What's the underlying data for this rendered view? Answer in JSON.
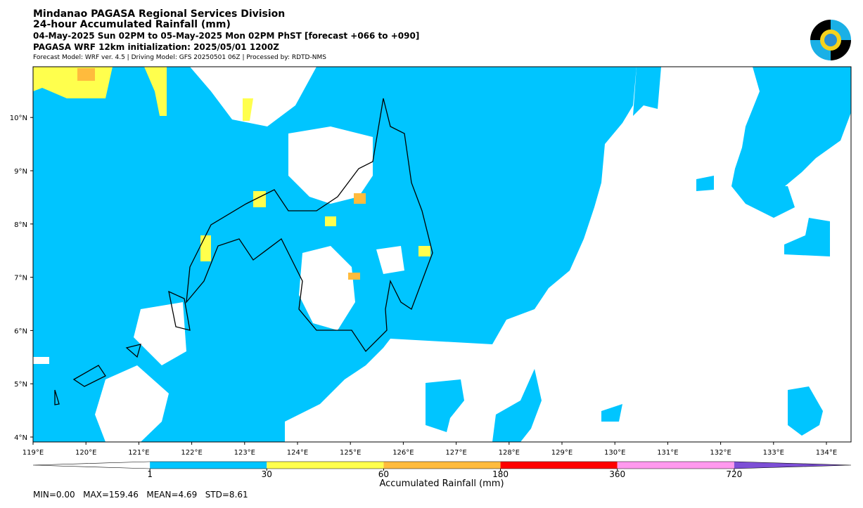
{
  "header": {
    "lines": [
      "Mindanao PAGASA Regional Services Division",
      "24-hour Accumulated Rainfall (mm)",
      "04-May-2025 Sun 02PM to 05-May-2025 Mon 02PM PhST [forecast +066 to +090]",
      "PAGASA WRF 12km initialization: 2025/05/01 1200Z",
      "Forecast Model: WRF ver. 4.5 | Driving Model: GFS 20250501 06Z | Processed by: RDTD-NMS"
    ]
  },
  "map": {
    "x_ticks": [
      "119°E",
      "120°E",
      "121°E",
      "122°E",
      "123°E",
      "124°E",
      "125°E",
      "126°E",
      "127°E",
      "128°E",
      "129°E",
      "130°E",
      "131°E",
      "132°E",
      "133°E",
      "134°E"
    ],
    "y_ticks": [
      "4°N",
      "5°N",
      "6°N",
      "7°N",
      "8°N",
      "9°N",
      "10°N"
    ]
  },
  "colorbar": {
    "label": "Accumulated Rainfall (mm)",
    "ticks": [
      "1",
      "30",
      "60",
      "180",
      "360",
      "720"
    ],
    "colors": [
      "#ffffff",
      "#00c5ff",
      "#ffff4d",
      "#ffbb3d",
      "#ff0000",
      "#ff99ee",
      "#7d4fd6"
    ]
  },
  "stats": "MIN=0.00   MAX=159.46   MEAN=4.69   STD=8.61"
}
